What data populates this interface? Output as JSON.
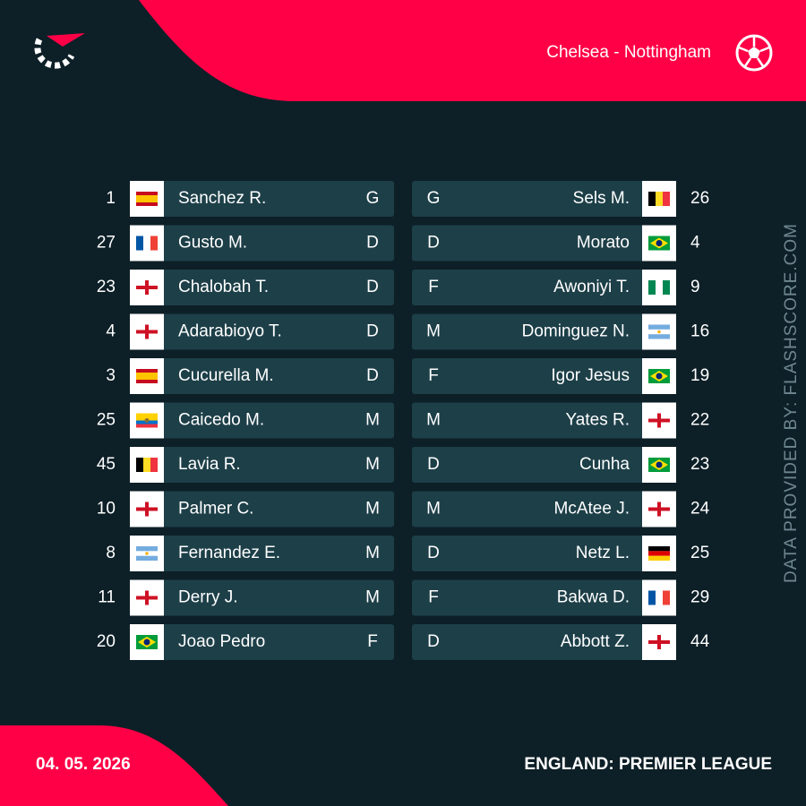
{
  "header": {
    "match": "Chelsea - Nottingham"
  },
  "home": [
    {
      "number": 1,
      "name": "Sanchez R.",
      "position": "G"
    },
    {
      "number": 27,
      "name": "Gusto M.",
      "position": "D"
    },
    {
      "number": 23,
      "name": "Chalobah T.",
      "position": "D"
    },
    {
      "number": 4,
      "name": "Adarabioyo T.",
      "position": "D"
    },
    {
      "number": 3,
      "name": "Cucurella M.",
      "position": "D"
    },
    {
      "number": 25,
      "name": "Caicedo M.",
      "position": "M"
    },
    {
      "number": 45,
      "name": "Lavia R.",
      "position": "M"
    },
    {
      "number": 10,
      "name": "Palmer C.",
      "position": "M"
    },
    {
      "number": 8,
      "name": "Fernandez E.",
      "position": "M"
    },
    {
      "number": 11,
      "name": "Derry J.",
      "position": "M"
    },
    {
      "number": 20,
      "name": "Joao Pedro",
      "position": "F"
    }
  ],
  "away": [
    {
      "number": 26,
      "name": "Sels M.",
      "position": "G"
    },
    {
      "number": 4,
      "name": "Morato",
      "position": "D"
    },
    {
      "number": 9,
      "name": "Awoniyi T.",
      "position": "F"
    },
    {
      "number": 16,
      "name": "Dominguez N.",
      "position": "M"
    },
    {
      "number": 19,
      "name": "Igor Jesus",
      "position": "F"
    },
    {
      "number": 22,
      "name": "Yates R.",
      "position": "M"
    },
    {
      "number": 23,
      "name": "Cunha",
      "position": "D"
    },
    {
      "number": 24,
      "name": "McAtee J.",
      "position": "M"
    },
    {
      "number": 25,
      "name": "Netz L.",
      "position": "D"
    },
    {
      "number": 29,
      "name": "Bakwa D.",
      "position": "F"
    },
    {
      "number": 44,
      "name": "Abbott Z.",
      "position": "D"
    }
  ],
  "footer": {
    "date": "04. 05. 2026",
    "league": "ENGLAND: PREMIER LEAGUE"
  },
  "credit": "DATA PROVIDED BY: FLASHSCORE.COM"
}
